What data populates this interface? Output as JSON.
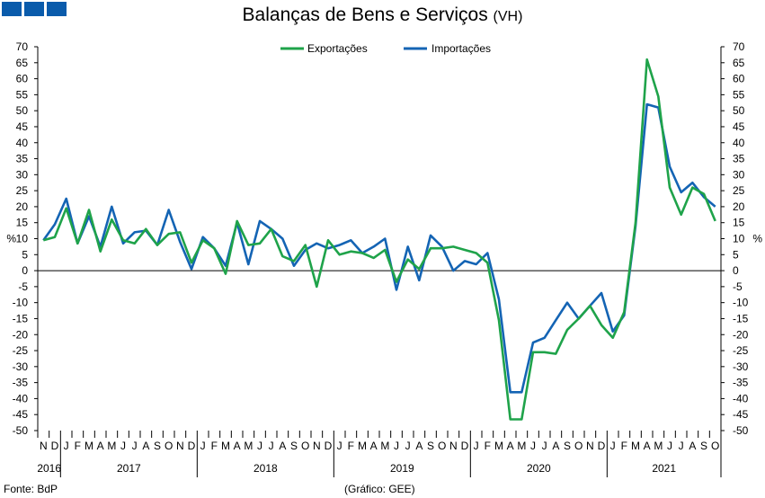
{
  "header": {
    "title": "Balanças de Bens e Serviços",
    "unit": "(VH)"
  },
  "footer": {
    "source": "Fonte: BdP",
    "credit": "(Gráfico: GEE)"
  },
  "colors": {
    "exports": "#1fa34a",
    "imports": "#1464b4",
    "brand": "#0a5bab"
  },
  "chart_data": {
    "type": "line",
    "ylabel_left": "%",
    "ylabel_right": "%",
    "ylim": [
      -50,
      70
    ],
    "ytick_step": 5,
    "legend_position": "top-center",
    "x": [
      "N",
      "D",
      "J",
      "F",
      "M",
      "A",
      "M",
      "J",
      "J",
      "A",
      "S",
      "O",
      "N",
      "D",
      "J",
      "F",
      "M",
      "A",
      "M",
      "J",
      "J",
      "A",
      "S",
      "O",
      "N",
      "D",
      "J",
      "F",
      "M",
      "A",
      "M",
      "J",
      "J",
      "A",
      "S",
      "O",
      "N",
      "D",
      "J",
      "F",
      "M",
      "A",
      "M",
      "J",
      "J",
      "A",
      "S",
      "O",
      "N",
      "D",
      "J",
      "F",
      "M",
      "A",
      "M",
      "J",
      "J",
      "A",
      "S",
      "O"
    ],
    "years": [
      {
        "label": "2016",
        "start": 0,
        "end": 2
      },
      {
        "label": "2017",
        "start": 2,
        "end": 14
      },
      {
        "label": "2018",
        "start": 14,
        "end": 26
      },
      {
        "label": "2019",
        "start": 26,
        "end": 38
      },
      {
        "label": "2020",
        "start": 38,
        "end": 50
      },
      {
        "label": "2021",
        "start": 50,
        "end": 60
      }
    ],
    "series": [
      {
        "name": "Exportações",
        "color": "#1fa34a",
        "values": [
          9.5,
          10.5,
          19.5,
          8.5,
          19,
          6,
          16,
          9.5,
          8.5,
          13,
          8,
          11.5,
          12,
          2.5,
          9.5,
          7,
          -1,
          15.5,
          8,
          8.5,
          13,
          4.5,
          3,
          8,
          -5,
          9.5,
          5,
          6,
          5.5,
          4,
          6.5,
          -3.5,
          3.5,
          0.5,
          7,
          7,
          7.5,
          6.5,
          5.5,
          2.5,
          -15.5,
          -46.5,
          -46.5,
          -25.5,
          -25.5,
          -26,
          -18.5,
          -15,
          -11,
          -17,
          -21,
          -13,
          15,
          66,
          54.5,
          26,
          17.5,
          26,
          24,
          15.5
        ]
      },
      {
        "name": "Importações",
        "color": "#1464b4",
        "values": [
          9.5,
          14.5,
          22.5,
          8.5,
          17,
          7.5,
          20,
          8.5,
          12,
          12.5,
          8,
          19,
          9,
          0.5,
          10.5,
          7,
          1.5,
          15,
          2,
          15.5,
          13,
          10,
          1.5,
          6.5,
          8.5,
          7,
          8,
          9.5,
          5.5,
          7.5,
          10,
          -6,
          7.5,
          -3,
          11,
          7.5,
          0,
          3,
          2,
          5.5,
          -9,
          -38,
          -38,
          -22.5,
          -21,
          -15.5,
          -10,
          -15,
          -11,
          -7,
          -19,
          -14,
          14,
          52,
          51,
          32.5,
          24.5,
          27.5,
          23,
          20
        ]
      }
    ]
  }
}
